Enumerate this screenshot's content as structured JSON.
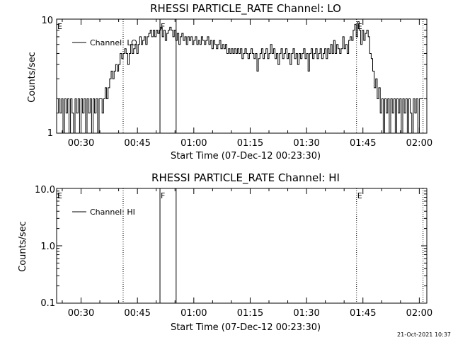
{
  "footer": {
    "timestamp": "21-Oct-2021 10:37"
  },
  "chart_data": [
    {
      "type": "line",
      "title": "RHESSI PARTICLE_RATE Channel: LO",
      "xlabel": "Start Time (07-Dec-12 00:23:30)",
      "ylabel": "Counts/sec",
      "y_scale": "log",
      "ylim": [
        1,
        10
      ],
      "y_ticks": [
        "1",
        "10"
      ],
      "xlim_minutes": [
        23.5,
        122
      ],
      "x_ticks": [
        {
          "label": "00:30",
          "minute": 30
        },
        {
          "label": "00:45",
          "minute": 45
        },
        {
          "label": "01:00",
          "minute": 60
        },
        {
          "label": "01:15",
          "minute": 75
        },
        {
          "label": "01:30",
          "minute": 90
        },
        {
          "label": "01:45",
          "minute": 105
        },
        {
          "label": "02:00",
          "minute": 120
        }
      ],
      "legend": {
        "label": "Channel: LO",
        "position": "top-left"
      },
      "markers": [
        {
          "label": "E",
          "minute": 23.5,
          "style": "none"
        },
        {
          "label": "",
          "minute": 41.2,
          "style": "dotted"
        },
        {
          "label": "F",
          "minute": 51.0,
          "style": "solid"
        },
        {
          "label": "",
          "minute": 55.3,
          "style": "solid"
        },
        {
          "label": "E",
          "minute": 103.3,
          "style": "dotted"
        },
        {
          "label": "",
          "minute": 121.0,
          "style": "dotted"
        }
      ],
      "series": [
        {
          "values": [
            [
              23.5,
              1.5
            ],
            [
              24.0,
              2.0
            ],
            [
              24.4,
              1.5
            ],
            [
              24.8,
              2.0
            ],
            [
              25.2,
              1.0
            ],
            [
              25.6,
              2.0
            ],
            [
              26.0,
              1.5
            ],
            [
              26.4,
              2.0
            ],
            [
              26.8,
              1.0
            ],
            [
              27.2,
              2.0
            ],
            [
              27.6,
              1.5
            ],
            [
              28.0,
              1.0
            ],
            [
              28.4,
              2.0
            ],
            [
              28.8,
              1.5
            ],
            [
              29.2,
              2.0
            ],
            [
              29.6,
              1.0
            ],
            [
              30.0,
              2.0
            ],
            [
              30.4,
              1.5
            ],
            [
              30.8,
              2.0
            ],
            [
              31.2,
              1.0
            ],
            [
              31.6,
              2.0
            ],
            [
              32.0,
              1.5
            ],
            [
              32.4,
              2.0
            ],
            [
              32.8,
              1.0
            ],
            [
              33.2,
              2.0
            ],
            [
              33.6,
              1.5
            ],
            [
              34.0,
              2.0
            ],
            [
              34.4,
              1.0
            ],
            [
              34.8,
              2.0
            ],
            [
              35.2,
              2.0
            ],
            [
              35.6,
              1.5
            ],
            [
              36.0,
              2.0
            ],
            [
              36.4,
              2.5
            ],
            [
              36.8,
              2.0
            ],
            [
              37.2,
              2.5
            ],
            [
              37.6,
              3.0
            ],
            [
              38.0,
              3.5
            ],
            [
              38.4,
              3.0
            ],
            [
              38.8,
              3.5
            ],
            [
              39.2,
              4.0
            ],
            [
              39.6,
              3.5
            ],
            [
              40.0,
              4.0
            ],
            [
              40.4,
              5.0
            ],
            [
              40.8,
              4.5
            ],
            [
              41.2,
              5.0
            ],
            [
              41.6,
              5.5
            ],
            [
              42.0,
              5.0
            ],
            [
              42.4,
              4.0
            ],
            [
              42.8,
              5.0
            ],
            [
              43.2,
              6.0
            ],
            [
              43.6,
              5.0
            ],
            [
              44.0,
              5.5
            ],
            [
              44.4,
              6.0
            ],
            [
              44.8,
              5.0
            ],
            [
              45.2,
              6.0
            ],
            [
              45.6,
              7.0
            ],
            [
              46.0,
              6.0
            ],
            [
              46.4,
              6.5
            ],
            [
              46.8,
              7.0
            ],
            [
              47.2,
              6.0
            ],
            [
              47.6,
              7.0
            ],
            [
              48.0,
              7.5
            ],
            [
              48.4,
              8.0
            ],
            [
              48.8,
              7.0
            ],
            [
              49.2,
              8.0
            ],
            [
              49.6,
              7.0
            ],
            [
              50.0,
              8.0
            ],
            [
              50.4,
              7.5
            ],
            [
              50.8,
              8.0
            ],
            [
              51.2,
              8.5
            ],
            [
              51.6,
              7.0
            ],
            [
              52.0,
              8.0
            ],
            [
              52.4,
              6.5
            ],
            [
              52.8,
              7.5
            ],
            [
              53.2,
              8.0
            ],
            [
              53.6,
              8.5
            ],
            [
              54.0,
              8.0
            ],
            [
              54.4,
              7.0
            ],
            [
              54.8,
              8.0
            ],
            [
              55.2,
              6.5
            ],
            [
              55.6,
              7.5
            ],
            [
              56.0,
              6.0
            ],
            [
              56.4,
              7.0
            ],
            [
              56.8,
              7.5
            ],
            [
              57.2,
              6.5
            ],
            [
              57.6,
              7.0
            ],
            [
              58.0,
              6.0
            ],
            [
              58.4,
              7.0
            ],
            [
              58.8,
              6.5
            ],
            [
              59.2,
              7.0
            ],
            [
              59.6,
              6.0
            ],
            [
              60.0,
              6.5
            ],
            [
              60.4,
              7.0
            ],
            [
              60.8,
              6.0
            ],
            [
              61.2,
              6.5
            ],
            [
              61.6,
              6.0
            ],
            [
              62.0,
              7.0
            ],
            [
              62.4,
              6.5
            ],
            [
              62.8,
              6.0
            ],
            [
              63.2,
              6.5
            ],
            [
              63.6,
              7.0
            ],
            [
              64.0,
              6.0
            ],
            [
              64.4,
              6.5
            ],
            [
              64.8,
              5.5
            ],
            [
              65.2,
              6.5
            ],
            [
              65.6,
              6.0
            ],
            [
              66.0,
              5.5
            ],
            [
              66.4,
              6.0
            ],
            [
              66.8,
              6.5
            ],
            [
              67.2,
              5.5
            ],
            [
              67.6,
              6.0
            ],
            [
              68.0,
              5.5
            ],
            [
              68.4,
              6.0
            ],
            [
              68.8,
              5.0
            ],
            [
              69.2,
              5.5
            ],
            [
              69.6,
              5.0
            ],
            [
              70.0,
              5.5
            ],
            [
              70.4,
              5.0
            ],
            [
              70.8,
              5.5
            ],
            [
              71.2,
              5.0
            ],
            [
              71.6,
              5.5
            ],
            [
              72.0,
              5.0
            ],
            [
              72.4,
              5.5
            ],
            [
              72.8,
              4.5
            ],
            [
              73.2,
              5.0
            ],
            [
              73.6,
              5.5
            ],
            [
              74.0,
              5.0
            ],
            [
              74.4,
              4.5
            ],
            [
              74.8,
              5.0
            ],
            [
              75.2,
              5.5
            ],
            [
              75.6,
              5.0
            ],
            [
              76.0,
              4.5
            ],
            [
              76.4,
              5.0
            ],
            [
              76.8,
              3.5
            ],
            [
              77.2,
              4.5
            ],
            [
              77.6,
              5.0
            ],
            [
              78.0,
              5.5
            ],
            [
              78.4,
              4.5
            ],
            [
              78.8,
              5.0
            ],
            [
              79.2,
              5.5
            ],
            [
              79.6,
              4.5
            ],
            [
              80.0,
              5.0
            ],
            [
              80.4,
              6.0
            ],
            [
              80.8,
              5.0
            ],
            [
              81.2,
              5.5
            ],
            [
              81.6,
              4.5
            ],
            [
              82.0,
              5.0
            ],
            [
              82.4,
              4.0
            ],
            [
              82.8,
              5.0
            ],
            [
              83.2,
              5.5
            ],
            [
              83.6,
              4.5
            ],
            [
              84.0,
              5.0
            ],
            [
              84.4,
              5.5
            ],
            [
              84.8,
              4.5
            ],
            [
              85.2,
              5.0
            ],
            [
              85.6,
              4.0
            ],
            [
              86.0,
              5.0
            ],
            [
              86.4,
              5.5
            ],
            [
              86.8,
              4.5
            ],
            [
              87.2,
              5.0
            ],
            [
              87.6,
              4.0
            ],
            [
              88.0,
              5.0
            ],
            [
              88.4,
              4.5
            ],
            [
              88.8,
              5.0
            ],
            [
              89.2,
              5.5
            ],
            [
              89.6,
              4.5
            ],
            [
              90.0,
              5.0
            ],
            [
              90.4,
              3.5
            ],
            [
              90.8,
              5.0
            ],
            [
              91.2,
              5.5
            ],
            [
              91.6,
              4.5
            ],
            [
              92.0,
              5.0
            ],
            [
              92.4,
              5.5
            ],
            [
              92.8,
              4.5
            ],
            [
              93.2,
              5.0
            ],
            [
              93.6,
              5.5
            ],
            [
              94.0,
              4.5
            ],
            [
              94.4,
              5.0
            ],
            [
              94.8,
              5.5
            ],
            [
              95.2,
              4.5
            ],
            [
              95.6,
              5.5
            ],
            [
              96.0,
              5.0
            ],
            [
              96.4,
              6.0
            ],
            [
              96.8,
              5.0
            ],
            [
              97.2,
              6.5
            ],
            [
              97.6,
              5.0
            ],
            [
              98.0,
              6.0
            ],
            [
              98.4,
              5.5
            ],
            [
              98.8,
              5.0
            ],
            [
              99.2,
              5.5
            ],
            [
              99.6,
              7.0
            ],
            [
              100.0,
              5.5
            ],
            [
              100.4,
              6.0
            ],
            [
              100.8,
              5.0
            ],
            [
              101.2,
              6.5
            ],
            [
              101.6,
              7.0
            ],
            [
              102.0,
              6.5
            ],
            [
              102.4,
              8.0
            ],
            [
              102.8,
              9.0
            ],
            [
              103.2,
              7.0
            ],
            [
              103.6,
              9.5
            ],
            [
              104.0,
              8.0
            ],
            [
              104.4,
              6.0
            ],
            [
              104.8,
              8.0
            ],
            [
              105.2,
              6.5
            ],
            [
              105.6,
              7.5
            ],
            [
              106.0,
              8.0
            ],
            [
              106.4,
              7.0
            ],
            [
              106.8,
              5.0
            ],
            [
              107.2,
              4.5
            ],
            [
              107.6,
              3.5
            ],
            [
              108.0,
              2.5
            ],
            [
              108.4,
              3.0
            ],
            [
              108.8,
              2.0
            ],
            [
              109.2,
              2.5
            ],
            [
              109.6,
              1.5
            ],
            [
              110.0,
              2.0
            ],
            [
              110.4,
              1.0
            ],
            [
              110.8,
              2.0
            ],
            [
              111.2,
              1.5
            ],
            [
              111.6,
              2.0
            ],
            [
              112.0,
              1.0
            ],
            [
              112.4,
              2.0
            ],
            [
              112.8,
              1.5
            ],
            [
              113.2,
              2.0
            ],
            [
              113.6,
              1.0
            ],
            [
              114.0,
              2.0
            ],
            [
              114.4,
              1.5
            ],
            [
              114.8,
              2.0
            ],
            [
              115.2,
              1.0
            ],
            [
              115.6,
              2.0
            ],
            [
              116.0,
              1.5
            ],
            [
              116.4,
              2.0
            ],
            [
              116.8,
              1.0
            ],
            [
              117.2,
              2.0
            ],
            [
              117.6,
              1.5
            ],
            [
              118.0,
              1.0
            ],
            [
              118.4,
              2.0
            ],
            [
              118.8,
              1.5
            ],
            [
              119.2,
              2.0
            ],
            [
              119.6,
              1.0
            ],
            [
              120.0,
              2.0
            ],
            [
              120.4,
              2.0
            ],
            [
              121.0,
              2.0
            ]
          ]
        }
      ]
    },
    {
      "type": "line",
      "title": "RHESSI PARTICLE_RATE Channel: HI",
      "xlabel": "Start Time (07-Dec-12 00:23:30)",
      "ylabel": "Counts/sec",
      "y_scale": "log",
      "ylim": [
        0.1,
        10
      ],
      "y_ticks": [
        "0.1",
        "1.0",
        "10.0"
      ],
      "xlim_minutes": [
        23.5,
        122
      ],
      "x_ticks": [
        {
          "label": "00:30",
          "minute": 30
        },
        {
          "label": "00:45",
          "minute": 45
        },
        {
          "label": "01:00",
          "minute": 60
        },
        {
          "label": "01:15",
          "minute": 75
        },
        {
          "label": "01:30",
          "minute": 90
        },
        {
          "label": "01:45",
          "minute": 105
        },
        {
          "label": "02:00",
          "minute": 120
        }
      ],
      "legend": {
        "label": "Channel: HI",
        "position": "top-left"
      },
      "markers": [
        {
          "label": "E",
          "minute": 23.5,
          "style": "none"
        },
        {
          "label": "",
          "minute": 41.2,
          "style": "dotted"
        },
        {
          "label": "F",
          "minute": 51.0,
          "style": "solid"
        },
        {
          "label": "",
          "minute": 55.3,
          "style": "solid"
        },
        {
          "label": "E",
          "minute": 103.3,
          "style": "dotted"
        },
        {
          "label": "",
          "minute": 121.0,
          "style": "dotted"
        }
      ],
      "series": [
        {
          "values": []
        }
      ]
    }
  ]
}
